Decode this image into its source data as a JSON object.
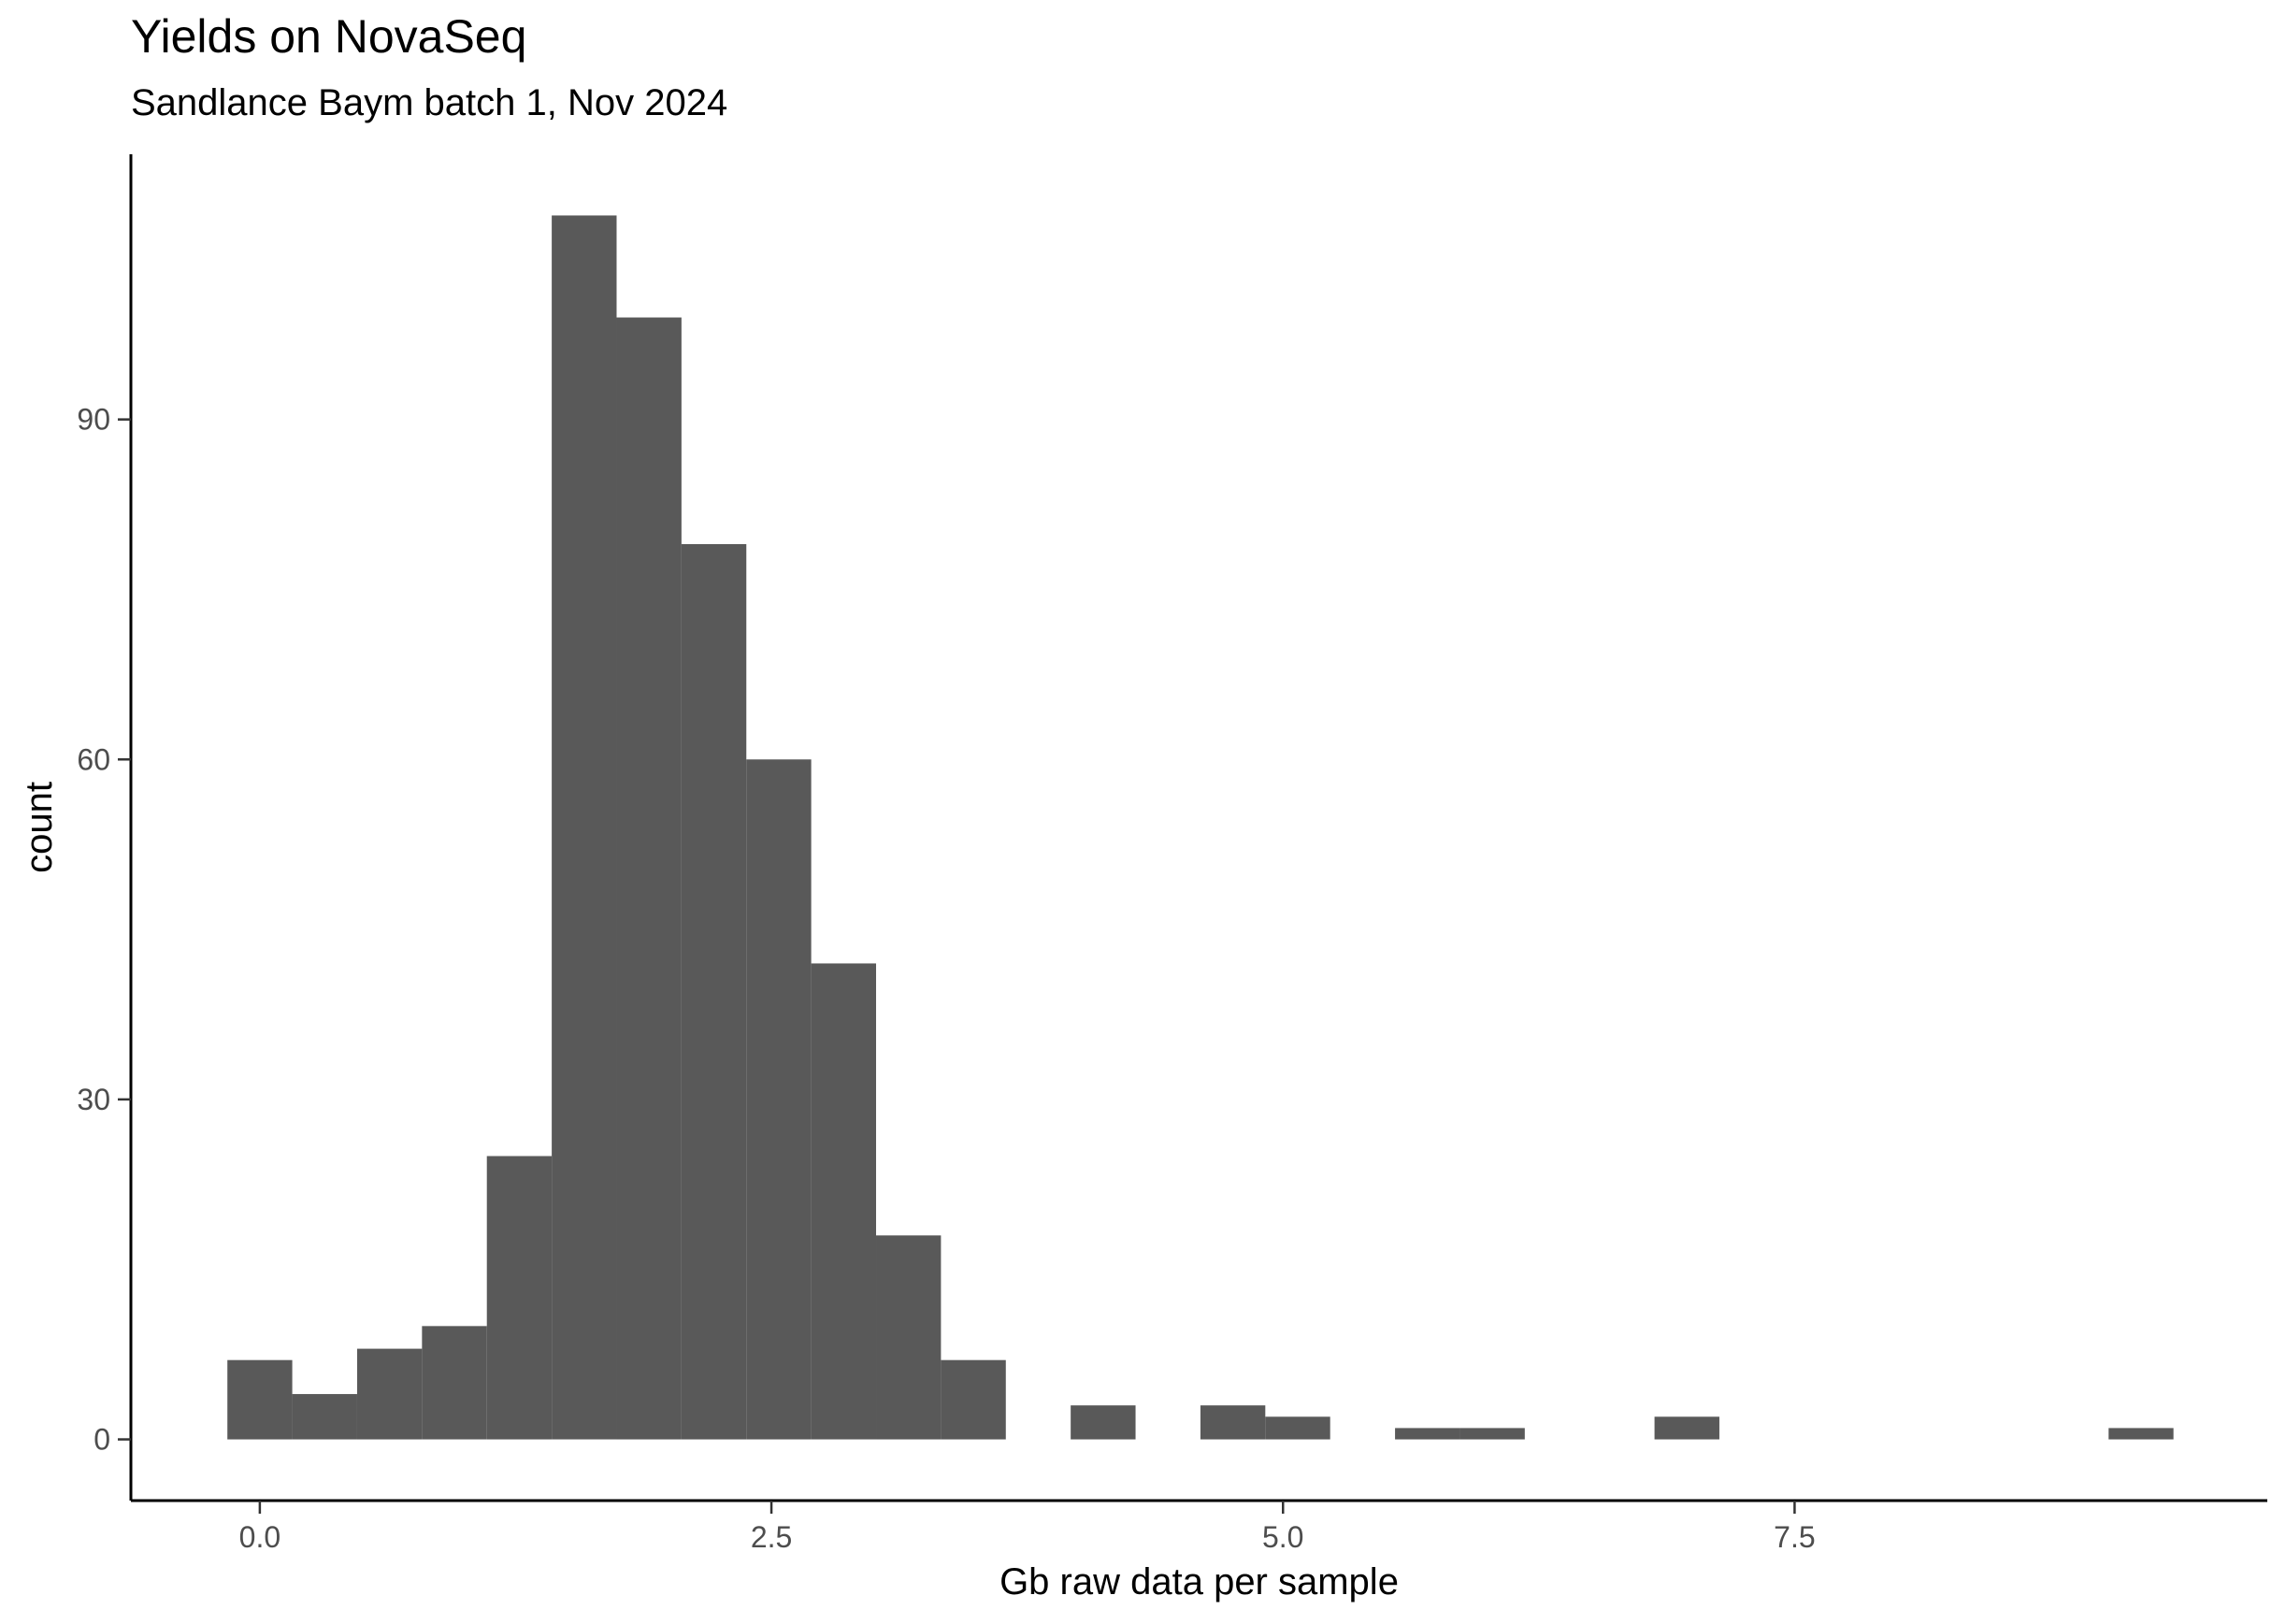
{
  "chart_data": {
    "type": "bar",
    "title": "Yields on NovaSeq",
    "subtitle": "Sandlance Baym batch 1, Nov 2024",
    "xlabel": "Gb raw data per sample",
    "ylabel": "count",
    "bin_width": 0.317,
    "bin_centers": [
      0.0,
      0.317,
      0.634,
      0.951,
      1.268,
      1.585,
      1.902,
      2.219,
      2.536,
      2.853,
      3.17,
      3.487,
      3.804,
      4.121,
      4.438,
      4.755,
      5.072,
      5.389,
      5.706,
      6.023,
      6.34,
      6.657,
      6.974,
      7.291,
      7.608,
      7.925,
      8.242,
      8.559,
      8.876,
      9.193
    ],
    "values": [
      7,
      4,
      8,
      10,
      25,
      108,
      99,
      79,
      60,
      42,
      18,
      7,
      0,
      3,
      0,
      3,
      2,
      0,
      1,
      1,
      0,
      0,
      2,
      0,
      0,
      0,
      0,
      0,
      0,
      1
    ],
    "xlim": [
      -0.63,
      9.81
    ],
    "ylim": [
      -5.4,
      113.4
    ],
    "x_ticks": [
      0.0,
      2.5,
      5.0,
      7.5
    ],
    "x_tick_labels": [
      "0.0",
      "2.5",
      "5.0",
      "7.5"
    ],
    "y_ticks": [
      0,
      30,
      60,
      90
    ],
    "y_tick_labels": [
      "0",
      "30",
      "60",
      "90"
    ],
    "bar_color": "#595959",
    "grid": false
  }
}
